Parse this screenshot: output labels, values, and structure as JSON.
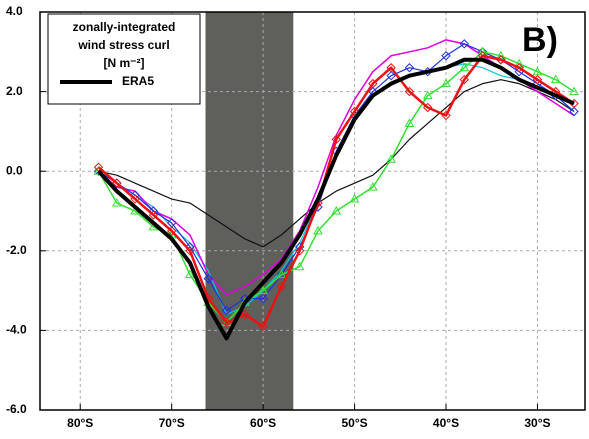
{
  "chart_data": {
    "type": "line",
    "panel_label": "B)",
    "legend_title": [
      "zonally-integrated",
      "wind stress curl",
      "[N m⁻²]"
    ],
    "legend_position": "upper left",
    "grid": true,
    "shaded_span": {
      "x": [
        -66.3,
        -56.7
      ],
      "color": "#5f5f5b"
    },
    "xlim": [
      -84.4,
      -24.8
    ],
    "ylim": [
      -6,
      4
    ],
    "xticks": [
      {
        "value": -80,
        "label": "80°S"
      },
      {
        "value": -70,
        "label": "70°S"
      },
      {
        "value": -60,
        "label": "60°S"
      },
      {
        "value": -50,
        "label": "50°S"
      },
      {
        "value": -40,
        "label": "40°S"
      },
      {
        "value": -30,
        "label": "30°S"
      }
    ],
    "yticks": [
      {
        "value": -6,
        "label": "-6.0"
      },
      {
        "value": -4,
        "label": "-4.0"
      },
      {
        "value": -2,
        "label": "-2.0"
      },
      {
        "value": 0,
        "label": "0.0"
      },
      {
        "value": 2,
        "label": "2.0"
      },
      {
        "value": 4,
        "label": "4.0"
      }
    ],
    "x": [
      -78,
      -76,
      -74,
      -72,
      -70,
      -68,
      -66,
      -64,
      -62,
      -60,
      -58,
      -56,
      -54,
      -52,
      -50,
      -48,
      -46,
      -44,
      -42,
      -40,
      -38,
      -36,
      -34,
      -32,
      -30,
      -28,
      -26
    ],
    "series": [
      {
        "color": "#111111",
        "width": 1.2,
        "marker": "none",
        "values": [
          0.0,
          -0.1,
          -0.3,
          -0.5,
          -0.7,
          -0.8,
          -1.1,
          -1.4,
          -1.7,
          -1.9,
          -1.6,
          -1.2,
          -0.8,
          -0.5,
          -0.3,
          -0.1,
          0.3,
          0.8,
          1.2,
          1.6,
          2.0,
          2.2,
          2.3,
          2.2,
          2.0,
          1.8,
          1.5
        ]
      },
      {
        "color": "#00c8e0",
        "width": 1.2,
        "marker": "none",
        "values": [
          0.0,
          -0.3,
          -0.6,
          -0.9,
          -1.4,
          -1.8,
          -2.5,
          -3.6,
          -3.4,
          -3.0,
          -2.5,
          -1.8,
          -0.8,
          0.4,
          1.3,
          1.9,
          2.2,
          2.4,
          2.5,
          2.6,
          2.7,
          2.6,
          2.4,
          2.3,
          2.1,
          1.9,
          1.5
        ]
      },
      {
        "color": "#e000e0",
        "width": 1.5,
        "marker": "none",
        "values": [
          0.0,
          -0.4,
          -0.5,
          -1.0,
          -1.2,
          -1.6,
          -2.6,
          -3.1,
          -2.9,
          -2.6,
          -2.2,
          -1.5,
          -0.4,
          0.9,
          1.8,
          2.5,
          2.9,
          3.0,
          3.1,
          3.3,
          3.2,
          2.9,
          2.6,
          2.3,
          2.0,
          1.7,
          1.4
        ]
      },
      {
        "color": "#2030e0",
        "width": 1.2,
        "marker": "diamond",
        "values": [
          0.0,
          -0.3,
          -0.6,
          -1.0,
          -1.3,
          -1.9,
          -2.7,
          -3.5,
          -3.2,
          -3.2,
          -2.6,
          -1.9,
          -0.9,
          0.5,
          1.4,
          2.0,
          2.4,
          2.6,
          2.5,
          2.9,
          3.2,
          3.0,
          2.8,
          2.5,
          2.2,
          1.9,
          1.5
        ]
      },
      {
        "color": "#33e033",
        "width": 1.5,
        "marker": "triangle",
        "values": [
          0.0,
          -0.8,
          -1.0,
          -1.4,
          -1.6,
          -2.6,
          -3.3,
          -3.8,
          -3.3,
          -3.0,
          -2.6,
          -2.4,
          -1.5,
          -1.0,
          -0.7,
          -0.4,
          0.3,
          1.2,
          1.9,
          2.2,
          2.6,
          3.0,
          2.9,
          2.7,
          2.5,
          2.3,
          2.0
        ]
      },
      {
        "color": "#ee1111",
        "width": 2.5,
        "marker": "diamond",
        "values": [
          0.1,
          -0.3,
          -0.7,
          -1.1,
          -1.5,
          -2.0,
          -3.2,
          -3.8,
          -3.6,
          -3.9,
          -2.9,
          -2.0,
          -0.8,
          0.8,
          1.5,
          2.2,
          2.6,
          2.0,
          1.6,
          1.4,
          2.3,
          2.9,
          2.8,
          2.6,
          2.3,
          2.0,
          1.7
        ]
      },
      {
        "name": "ERA5",
        "color": "#000000",
        "width": 4,
        "marker": "none",
        "values": [
          0.0,
          -0.5,
          -0.9,
          -1.3,
          -1.7,
          -2.3,
          -3.4,
          -4.2,
          -3.3,
          -2.8,
          -2.3,
          -1.6,
          -0.7,
          0.4,
          1.3,
          1.9,
          2.2,
          2.4,
          2.5,
          2.6,
          2.8,
          2.8,
          2.6,
          2.3,
          2.1,
          1.9,
          1.7
        ]
      }
    ]
  }
}
